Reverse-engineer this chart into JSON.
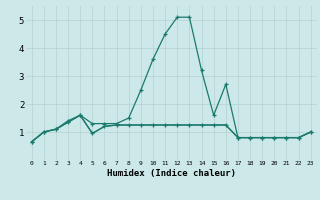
{
  "title": "",
  "xlabel": "Humidex (Indice chaleur)",
  "background_color": "#cce8e8",
  "grid_color": "#b8d4d4",
  "line_color": "#1a7a6e",
  "xlim": [
    -0.5,
    23.5
  ],
  "ylim": [
    0,
    5.5
  ],
  "xticks": [
    0,
    1,
    2,
    3,
    4,
    5,
    6,
    7,
    8,
    9,
    10,
    11,
    12,
    13,
    14,
    15,
    16,
    17,
    18,
    19,
    20,
    21,
    22,
    23
  ],
  "yticks": [
    1,
    2,
    3,
    4,
    5
  ],
  "series0_x": [
    0,
    1,
    2,
    3,
    4,
    5,
    6,
    7,
    8,
    9,
    10,
    11,
    12,
    13,
    14,
    15,
    16,
    17,
    18,
    19,
    20,
    21,
    22,
    23
  ],
  "series0_y": [
    0.65,
    1.0,
    1.1,
    1.4,
    1.6,
    1.3,
    1.3,
    1.3,
    1.5,
    2.5,
    3.6,
    4.5,
    5.1,
    5.1,
    3.2,
    1.6,
    2.7,
    0.8,
    0.8,
    0.8,
    0.8,
    0.8,
    0.8,
    1.0
  ],
  "series1_x": [
    0,
    1,
    2,
    3,
    4,
    5,
    6,
    7,
    8,
    9,
    10,
    11,
    12,
    13,
    14,
    15,
    16,
    17,
    18,
    19,
    20,
    21,
    22,
    23
  ],
  "series1_y": [
    0.65,
    1.0,
    1.1,
    1.35,
    1.6,
    0.95,
    1.2,
    1.25,
    1.25,
    1.25,
    1.25,
    1.25,
    1.25,
    1.25,
    1.25,
    1.25,
    1.25,
    0.8,
    0.8,
    0.8,
    0.8,
    0.8,
    0.8,
    1.0
  ],
  "series2_x": [
    0,
    1,
    2,
    3,
    4,
    5,
    6,
    7,
    8,
    9,
    10,
    11,
    12,
    13,
    14,
    15,
    16,
    17,
    18,
    19,
    20,
    21,
    22,
    23
  ],
  "series2_y": [
    0.65,
    1.0,
    1.1,
    1.35,
    1.6,
    0.95,
    1.2,
    1.25,
    1.25,
    1.25,
    1.25,
    1.25,
    1.25,
    1.25,
    1.25,
    1.25,
    1.25,
    0.8,
    0.8,
    0.8,
    0.8,
    0.8,
    0.8,
    1.0
  ]
}
